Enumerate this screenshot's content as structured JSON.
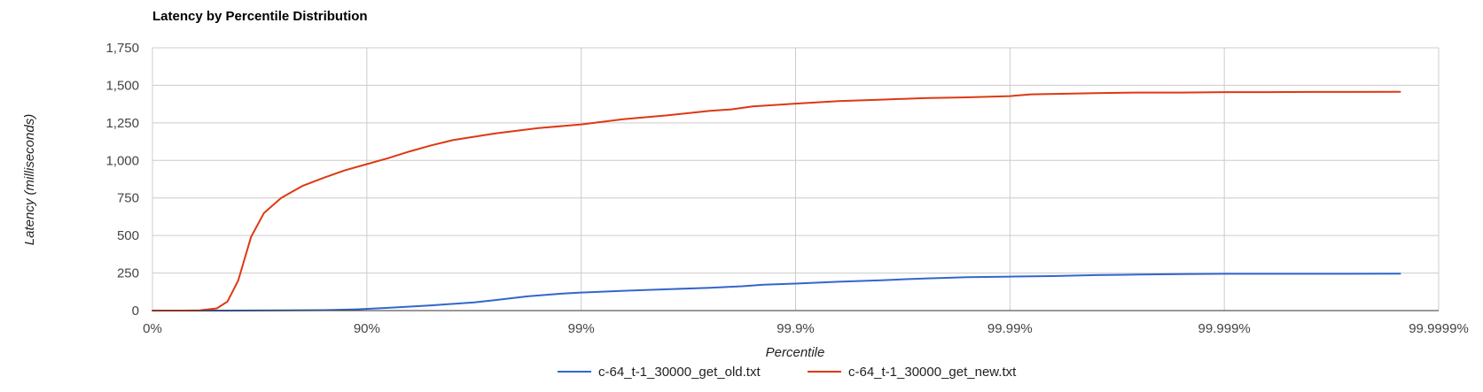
{
  "chart_data": {
    "type": "line",
    "title": "Latency by Percentile Distribution",
    "xlabel": "Percentile",
    "ylabel": "Latency (milliseconds)",
    "x_scale": "log-inverse (number of nines)",
    "xlim": [
      0,
      6
    ],
    "x_ticks": [
      {
        "value": 0,
        "label": "0%"
      },
      {
        "value": 1,
        "label": "90%"
      },
      {
        "value": 2,
        "label": "99%"
      },
      {
        "value": 3,
        "label": "99.9%"
      },
      {
        "value": 4,
        "label": "99.99%"
      },
      {
        "value": 5,
        "label": "99.999%"
      },
      {
        "value": 6,
        "label": "99.9999%"
      }
    ],
    "ylim": [
      0,
      1750
    ],
    "y_ticks": [
      {
        "value": 0,
        "label": "0"
      },
      {
        "value": 250,
        "label": "250"
      },
      {
        "value": 500,
        "label": "500"
      },
      {
        "value": 750,
        "label": "750"
      },
      {
        "value": 1000,
        "label": "1,000"
      },
      {
        "value": 1250,
        "label": "1,250"
      },
      {
        "value": 1500,
        "label": "1,500"
      },
      {
        "value": 1750,
        "label": "1,750"
      }
    ],
    "grid": true,
    "legend_position": "bottom",
    "series": [
      {
        "name": "c-64_t-1_30000_get_old.txt",
        "color": "#3366cc",
        "points": [
          [
            0,
            0
          ],
          [
            0.3,
            0
          ],
          [
            0.6,
            1
          ],
          [
            0.8,
            3
          ],
          [
            0.95,
            8
          ],
          [
            1.1,
            18
          ],
          [
            1.3,
            35
          ],
          [
            1.5,
            55
          ],
          [
            1.6,
            70
          ],
          [
            1.75,
            95
          ],
          [
            1.9,
            112
          ],
          [
            2.0,
            120
          ],
          [
            2.2,
            132
          ],
          [
            2.4,
            142
          ],
          [
            2.6,
            152
          ],
          [
            2.75,
            162
          ],
          [
            2.85,
            172
          ],
          [
            3.0,
            180
          ],
          [
            3.2,
            192
          ],
          [
            3.4,
            202
          ],
          [
            3.6,
            214
          ],
          [
            3.8,
            222
          ],
          [
            4.0,
            226
          ],
          [
            4.2,
            230
          ],
          [
            4.4,
            236
          ],
          [
            4.6,
            240
          ],
          [
            4.8,
            243
          ],
          [
            5.0,
            245
          ],
          [
            5.2,
            245
          ],
          [
            5.4,
            245
          ],
          [
            5.6,
            245
          ],
          [
            5.82,
            246
          ]
        ]
      },
      {
        "name": "c-64_t-1_30000_get_new.txt",
        "color": "#dc3912",
        "points": [
          [
            0,
            0
          ],
          [
            0.15,
            0
          ],
          [
            0.22,
            2
          ],
          [
            0.3,
            15
          ],
          [
            0.35,
            60
          ],
          [
            0.4,
            200
          ],
          [
            0.46,
            490
          ],
          [
            0.52,
            650
          ],
          [
            0.6,
            750
          ],
          [
            0.65,
            790
          ],
          [
            0.7,
            830
          ],
          [
            0.8,
            885
          ],
          [
            0.9,
            935
          ],
          [
            1.0,
            975
          ],
          [
            1.1,
            1015
          ],
          [
            1.2,
            1060
          ],
          [
            1.3,
            1100
          ],
          [
            1.4,
            1135
          ],
          [
            1.6,
            1180
          ],
          [
            1.8,
            1215
          ],
          [
            2.0,
            1240
          ],
          [
            2.2,
            1275
          ],
          [
            2.4,
            1300
          ],
          [
            2.6,
            1330
          ],
          [
            2.7,
            1340
          ],
          [
            2.8,
            1360
          ],
          [
            3.0,
            1378
          ],
          [
            3.2,
            1395
          ],
          [
            3.4,
            1405
          ],
          [
            3.6,
            1415
          ],
          [
            3.8,
            1420
          ],
          [
            4.0,
            1428
          ],
          [
            4.1,
            1440
          ],
          [
            4.4,
            1448
          ],
          [
            4.6,
            1452
          ],
          [
            4.8,
            1452
          ],
          [
            5.0,
            1455
          ],
          [
            5.2,
            1455
          ],
          [
            5.4,
            1456
          ],
          [
            5.6,
            1456
          ],
          [
            5.82,
            1457
          ]
        ]
      }
    ]
  }
}
